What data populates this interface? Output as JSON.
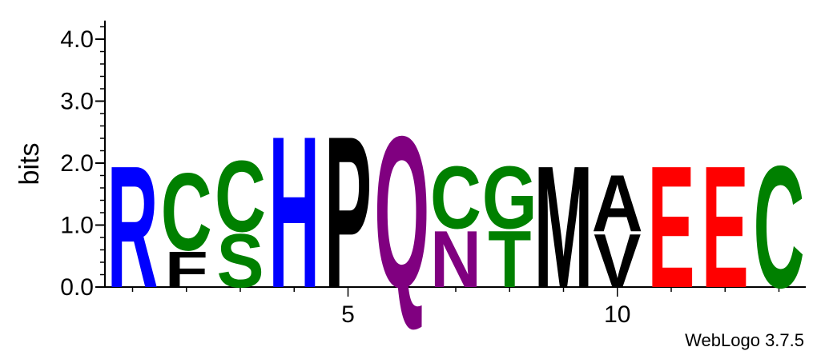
{
  "chart_data": {
    "type": "sequence-logo",
    "ylabel": "bits",
    "ylim": [
      0,
      4.3
    ],
    "yticks": [
      {
        "value": 0,
        "label": "0.0"
      },
      {
        "value": 1,
        "label": "1.0"
      },
      {
        "value": 2,
        "label": "2.0"
      },
      {
        "value": 3,
        "label": "3.0"
      },
      {
        "value": 4,
        "label": "4.0"
      }
    ],
    "y_minor_step": 0.2,
    "positions": [
      1,
      2,
      3,
      4,
      5,
      6,
      7,
      8,
      9,
      10,
      11,
      12,
      13
    ],
    "xticks": [
      {
        "position": 5,
        "label": "5"
      },
      {
        "position": 10,
        "label": "10"
      }
    ],
    "stacks": [
      {
        "position": 1,
        "letters": [
          {
            "letter": "R",
            "height": 2.05,
            "color": "#0000ff"
          }
        ]
      },
      {
        "position": 2,
        "letters": [
          {
            "letter": "F",
            "height": 0.6,
            "color": "#000000"
          },
          {
            "letter": "C",
            "height": 1.3,
            "color": "#008000"
          }
        ]
      },
      {
        "position": 3,
        "letters": [
          {
            "letter": "S",
            "height": 0.9,
            "color": "#008000"
          },
          {
            "letter": "C",
            "height": 1.2,
            "color": "#008000"
          }
        ]
      },
      {
        "position": 4,
        "letters": [
          {
            "letter": "H",
            "height": 2.55,
            "color": "#0000ff"
          }
        ]
      },
      {
        "position": 5,
        "letters": [
          {
            "letter": "P",
            "height": 2.55,
            "color": "#000000"
          }
        ]
      },
      {
        "position": 6,
        "letters": [
          {
            "letter": "Q",
            "height": 2.55,
            "color": "#800080"
          }
        ]
      },
      {
        "position": 7,
        "letters": [
          {
            "letter": "N",
            "height": 0.95,
            "color": "#800080"
          },
          {
            "letter": "C",
            "height": 1.05,
            "color": "#008000"
          }
        ]
      },
      {
        "position": 8,
        "letters": [
          {
            "letter": "T",
            "height": 0.95,
            "color": "#008000"
          },
          {
            "letter": "G",
            "height": 1.05,
            "color": "#008000"
          }
        ]
      },
      {
        "position": 9,
        "letters": [
          {
            "letter": "M",
            "height": 2.05,
            "color": "#000000"
          }
        ]
      },
      {
        "position": 10,
        "letters": [
          {
            "letter": "V",
            "height": 0.9,
            "color": "#000000"
          },
          {
            "letter": "A",
            "height": 0.95,
            "color": "#000000"
          }
        ]
      },
      {
        "position": 11,
        "letters": [
          {
            "letter": "E",
            "height": 2.05,
            "color": "#ff0000"
          }
        ]
      },
      {
        "position": 12,
        "letters": [
          {
            "letter": "E",
            "height": 2.05,
            "color": "#ff0000"
          }
        ]
      },
      {
        "position": 13,
        "letters": [
          {
            "letter": "C",
            "height": 2.05,
            "color": "#008000"
          }
        ]
      }
    ]
  },
  "credit": "WebLogo 3.7.5"
}
